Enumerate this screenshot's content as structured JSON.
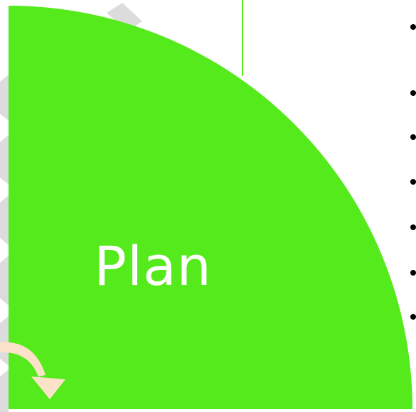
{
  "diagram": {
    "quadrant": {
      "label": "Plan",
      "fill_color": "#55EA1B"
    },
    "background_chevron_color": "#DCDCDC",
    "divider_line_color": "#55EA1B",
    "arrow_color": "#FCE2C8",
    "bullets": [
      {
        "text": ""
      },
      {
        "text": ""
      },
      {
        "text": ""
      },
      {
        "text": ""
      },
      {
        "text": ""
      },
      {
        "text": ""
      },
      {
        "text": ""
      }
    ]
  }
}
